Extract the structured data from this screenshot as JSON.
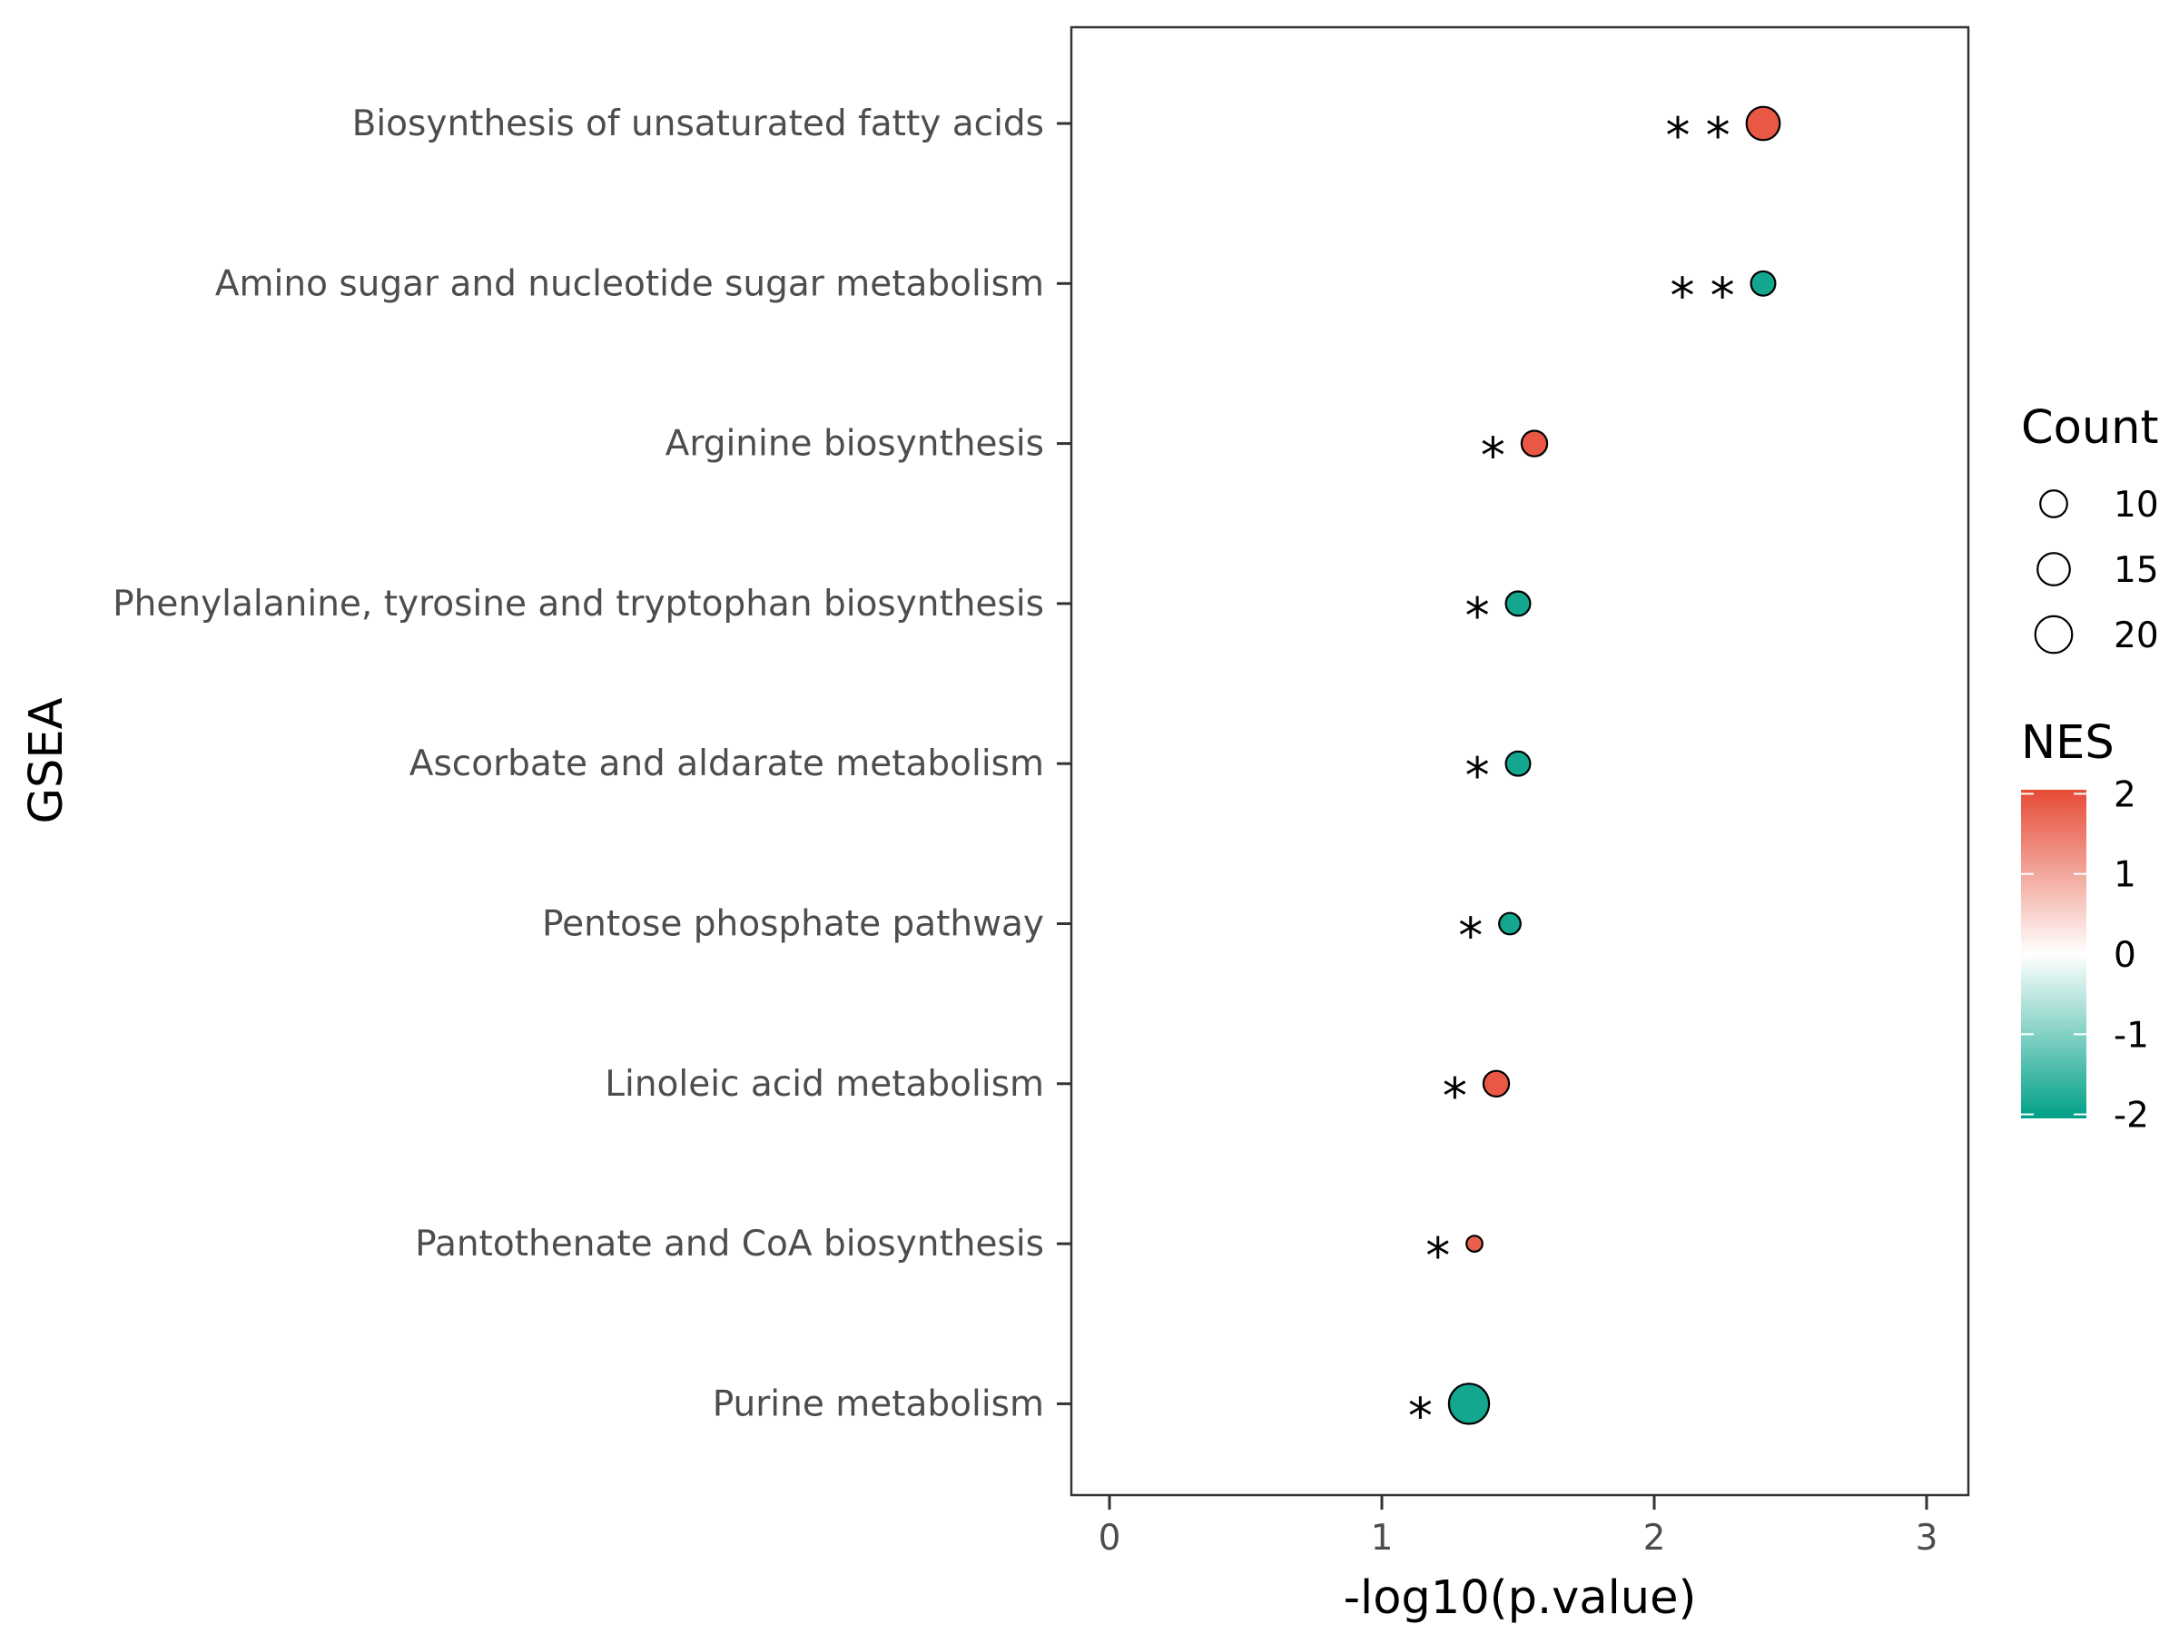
{
  "chart_data": {
    "type": "scatter",
    "title": "",
    "xlabel": "-log10(p.value)",
    "ylabel": "GSEA",
    "xlim": [
      -0.14,
      3.14
    ],
    "xticks": [
      0,
      1,
      2,
      3
    ],
    "grid": false,
    "legend_position": "right",
    "points": [
      {
        "term": "Biosynthesis of unsaturated fatty acids",
        "x": 2.4,
        "count": 16,
        "nes": 1.9,
        "sig": "**"
      },
      {
        "term": "Amino sugar and nucleotide sugar metabolism",
        "x": 2.4,
        "count": 8,
        "nes": -1.9,
        "sig": "**"
      },
      {
        "term": "Arginine biosynthesis",
        "x": 1.56,
        "count": 9,
        "nes": 1.9,
        "sig": "*"
      },
      {
        "term": "Phenylalanine, tyrosine and tryptophan biosynthesis",
        "x": 1.5,
        "count": 8,
        "nes": -1.9,
        "sig": "*"
      },
      {
        "term": "Ascorbate and aldarate metabolism",
        "x": 1.5,
        "count": 8,
        "nes": -1.9,
        "sig": "*"
      },
      {
        "term": "Pentose phosphate pathway",
        "x": 1.47,
        "count": 6,
        "nes": -1.9,
        "sig": "*"
      },
      {
        "term": "Linoleic acid metabolism",
        "x": 1.42,
        "count": 9,
        "nes": 1.9,
        "sig": "*"
      },
      {
        "term": "Pantothenate and CoA biosynthesis",
        "x": 1.34,
        "count": 3,
        "nes": 1.8,
        "sig": "*"
      },
      {
        "term": "Purine metabolism",
        "x": 1.32,
        "count": 24,
        "nes": -1.9,
        "sig": "*"
      }
    ],
    "legend_count": {
      "title": "Count",
      "values": [
        10,
        15,
        20
      ]
    },
    "legend_nes": {
      "title": "NES",
      "ticks": [
        2,
        1,
        0,
        -1,
        -2
      ],
      "tick_labels": [
        "2",
        "1",
        "0",
        "-1",
        "-2"
      ],
      "range": [
        -2.05,
        2.05
      ],
      "colors": {
        "high": "#E64B35",
        "mid": "#FFFFFF",
        "low": "#00A087"
      }
    }
  }
}
